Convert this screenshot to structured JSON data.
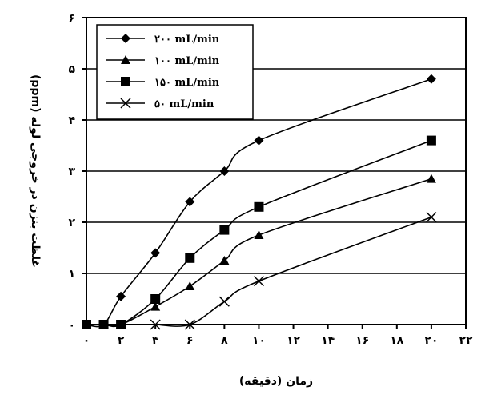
{
  "chart_data": {
    "type": "line",
    "xlabel": "زمان (دقیقه)",
    "ylabel": "غلظت بنزن در خروجی لوله (ppm)",
    "xlim": [
      0,
      22
    ],
    "ylim": [
      0,
      6
    ],
    "x_ticks": [
      0,
      2,
      4,
      6,
      8,
      10,
      12,
      14,
      16,
      18,
      20,
      22
    ],
    "x_tick_labels": [
      "۰",
      "۲",
      "۴",
      "۶",
      "۸",
      "۱۰",
      "۱۲",
      "۱۴",
      "۱۶",
      "۱۸",
      "۲۰",
      "۲۲"
    ],
    "y_ticks": [
      0,
      1,
      2,
      3,
      4,
      5,
      6
    ],
    "y_tick_labels": [
      "۰",
      "۱",
      "۲",
      "۳",
      "۴",
      "۵",
      "۶"
    ],
    "grid": "horizontal",
    "legend_position": "top-left",
    "series": [
      {
        "name": "۲۰۰ mL/min",
        "marker": "diamond",
        "x": [
          0,
          1,
          2,
          4,
          6,
          8,
          10,
          20
        ],
        "y": [
          0,
          0,
          0.55,
          1.4,
          2.4,
          3.0,
          3.6,
          4.8
        ]
      },
      {
        "name": "۱۰۰ mL/min",
        "marker": "triangle",
        "x": [
          0,
          1,
          2,
          4,
          6,
          8,
          10,
          20
        ],
        "y": [
          0,
          0,
          0,
          0.35,
          0.75,
          1.25,
          1.75,
          2.85
        ]
      },
      {
        "name": "۱۵۰ mL/min",
        "marker": "square",
        "x": [
          0,
          1,
          2,
          4,
          6,
          8,
          10,
          20
        ],
        "y": [
          0,
          0,
          0,
          0.5,
          1.3,
          1.85,
          2.3,
          3.6
        ]
      },
      {
        "name": "۵۰ mL/min",
        "marker": "x",
        "x": [
          4,
          6,
          8,
          10,
          20
        ],
        "y": [
          0,
          0,
          0.45,
          0.85,
          2.1
        ]
      }
    ]
  }
}
